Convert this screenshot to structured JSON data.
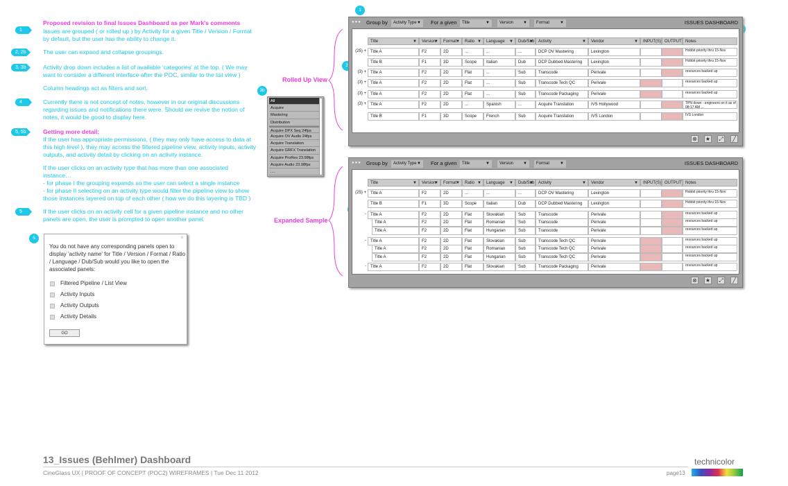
{
  "notes": {
    "heading": "Proposed revision to final Issues Dashboard as per Mark's comments",
    "items": [
      {
        "tag": "1",
        "text": "Issues are grouped ( or rolled up ) by Activity for a given Title / Version / Format by default, but the user has the ability to change it."
      },
      {
        "tag": "2, 2b",
        "text": "The user can expand and collapse groupings."
      },
      {
        "tag": "3, 3b",
        "text": "Activity drop down includes a list of available 'categories' at the top. ( We may want to consider a different interface after the POC, similar to the list view )"
      },
      {
        "tag": "",
        "text": "Column headings act as filters and sort."
      },
      {
        "tag": "4",
        "text": "Currently there is not concept of notes, however in our original discussions regarding issues and notifications there were.  Should we revive the notion of notes, it would be good to display here."
      },
      {
        "tag": "5, 5b",
        "heading": "Getting more detail:",
        "text": "If the user has appropriate permissions, ( they may only have access to data at this high level ), they may access the filtered pipeline view, activity inputs, activity outputs, and activity detail by clicking on an activity instance."
      },
      {
        "tag": "",
        "text": "If the user clicks on an activity type that has more than one associated instance…"
      },
      {
        "tag": "",
        "text": "- for phase I the grouping expands so the user can select a single instance"
      },
      {
        "tag": "",
        "text": "- for phase II selecting on an activity type would filter the pipeline view to show those instances layered on top of each other ( how we do this layering is TBD )"
      },
      {
        "tag": "5",
        "text": "If the user clicks on an activity cell for a given pipeline instance and no other panels are open, the user is prompted to open another panel."
      }
    ]
  },
  "labels": {
    "rolled_up": "Rolled Up View",
    "expanded": "Expanded Sample"
  },
  "bubbles": {
    "b1": "1",
    "b2": "2",
    "b3b": "3b",
    "b4": "4",
    "b5": "5",
    "b2b": "2b",
    "b5dialog": "5"
  },
  "activity_dropdown": {
    "items": [
      "All",
      "Acquire",
      "Mastering",
      "Distribution",
      "Acquire DPX Seq 24fps",
      "Acquire OV Audio 24fps",
      "Acquire Translation",
      "Acquire GRFX Translation",
      "Acquire ProRes 23.98fps",
      "Acquire Audio 23.98fps",
      "...."
    ],
    "selected": "All"
  },
  "dashboard": {
    "group_by_label": "Group by",
    "group_by_value": "Activity Type",
    "for_a_given_label": "For a given",
    "filters": [
      "Title",
      "Version",
      "Format"
    ],
    "title": "ISSUES DASHBOARD",
    "columns": [
      "Title",
      "Version",
      "Format",
      "Ratio",
      "Language",
      "Dub/Sub",
      "Activity",
      "Vendor",
      "INPUT(S)",
      "OUTPUT",
      "Notes"
    ],
    "footer_icons": [
      "close-circle-icon",
      "pin-icon",
      "expand-icon",
      "resize-grip-icon"
    ]
  },
  "rolled_up_rows": [
    {
      "prefix": "(25) +",
      "cells": [
        "Title A",
        "F2",
        "2D",
        "...",
        "...",
        "...",
        "DCP OV Mastering",
        "Lexington",
        "",
        "",
        "Hobbit priority thru 15-Nov"
      ],
      "red": "output"
    },
    {
      "prefix": "",
      "cells": [
        "Title B",
        "F1",
        "3D",
        "Scope",
        "Italian",
        "Dub",
        "DCP Dubbed Mastering",
        "Lexington",
        "",
        "",
        "Hobbit priority thru 15-Nov"
      ],
      "red": "output"
    },
    {
      "prefix": "(3) +",
      "cells": [
        "Title A",
        "F2",
        "2D",
        "Flat",
        "...",
        "Sub",
        "Transcode",
        "Perivale",
        "",
        "",
        "resources backed up"
      ],
      "red": "output"
    },
    {
      "prefix": "(3) +",
      "cells": [
        "Title A",
        "F2",
        "2D",
        "Flat",
        "...",
        "Sub",
        "Transcode Tech QC",
        "Perivale",
        "",
        "",
        "resources backed up"
      ],
      "red": "input"
    },
    {
      "prefix": "(3) +",
      "cells": [
        "Title A",
        "F2",
        "2D",
        "Flat",
        "...",
        "Sub",
        "Transcode Packaging",
        "Perivale",
        "",
        "",
        "resources backed up"
      ],
      "red": "input"
    },
    {
      "prefix": "(3) +",
      "cells": [
        "Title A",
        "F2",
        "2D",
        "...",
        "Spanish",
        "...",
        "Acquire Translation",
        "IVS Hollywood",
        "",
        "",
        "TPN down - engineers on it as of 08:17 AM ..."
      ],
      "red": "output"
    },
    {
      "prefix": "",
      "cells": [
        "Title B",
        "F1",
        "3D",
        "Scope",
        "French",
        "Sub",
        "Acquire Translation",
        "IVS London",
        "",
        "",
        "IVS London"
      ],
      "red": "output"
    }
  ],
  "expanded_rows": [
    {
      "prefix": "(25) +",
      "cells": [
        "Title A",
        "F2",
        "2D",
        "...",
        "...",
        "...",
        "DCP OV Mastering",
        "Lexington",
        "",
        "",
        "Hobbit priority thru 15-Nov"
      ],
      "red": "output",
      "child": false
    },
    {
      "prefix": "",
      "cells": [
        "Title B",
        "F1",
        "3D",
        "Scope",
        "Italian",
        "Dub",
        "DCP Dubbed Mastering",
        "Lexington",
        "",
        "",
        "Hobbit priority thru 15-Nov"
      ],
      "red": "output",
      "child": false
    },
    {
      "prefix": "-",
      "cells": [
        "Title A",
        "F2",
        "2D",
        "Flat",
        "Slovakian",
        "Sub",
        "Transcode",
        "Perivale",
        "",
        "",
        "resources backed up"
      ],
      "red": "output",
      "child": false
    },
    {
      "prefix": "",
      "cells": [
        "Title A",
        "F2",
        "2D",
        "Flat",
        "Romanian",
        "Sub",
        "Transcode",
        "Perivale",
        "",
        "",
        "resources backed up"
      ],
      "red": "output",
      "child": true
    },
    {
      "prefix": "",
      "cells": [
        "Title A",
        "F2",
        "2D",
        "Flat",
        "Hungarian",
        "Sub",
        "Transcode",
        "Perivale",
        "",
        "",
        "resources backed up"
      ],
      "red": "output",
      "child": true
    },
    {
      "prefix": "-",
      "cells": [
        "Title A",
        "F2",
        "2D",
        "Flat",
        "Slovakian",
        "Sub",
        "Transcode Tech QC",
        "Perivale",
        "",
        "",
        "resources backed up"
      ],
      "red": "input",
      "child": false
    },
    {
      "prefix": "",
      "cells": [
        "Title A",
        "F2",
        "2D",
        "Flat",
        "Romanian",
        "Sub",
        "Transcode Tech QC",
        "Perivale",
        "",
        "",
        "resources backed up"
      ],
      "red": "input",
      "child": true
    },
    {
      "prefix": "",
      "cells": [
        "Title A",
        "F2",
        "2D",
        "Flat",
        "Hungarian",
        "Sub",
        "Transcode Tech QC",
        "Perivale",
        "",
        "",
        "resources backed up"
      ],
      "red": "input",
      "child": true
    },
    {
      "prefix": "-",
      "cells": [
        "Title A",
        "F2",
        "2D",
        "Flat",
        "Slovakian",
        "Sub",
        "Transcode Packaging",
        "Perivale",
        "",
        "",
        "resources backed up"
      ],
      "red": "input",
      "child": false
    }
  ],
  "dialog": {
    "close": "x",
    "message": "You do not have any corresponding panels open to display 'activity name' for Title / Version / Format / Ratio / Language / Dub/Sub would you like to open the associated panels:",
    "options": [
      "Filtered Pipeline / List View",
      "Activity Inputs",
      "Activity Outputs",
      "Activity Details"
    ],
    "go": "GO"
  },
  "footer": {
    "title": "13_Issues (Behlmer)  Dashboard",
    "subtitle": "CineGlass UX | PROOF OF CONCEPT (POC2) WIREFRAMES | Tue Dec 11 2012",
    "page_label": "page",
    "page_number": "13",
    "logo_text": "technicolor"
  },
  "colors": {
    "accent_cyan": "#1ec8e8",
    "accent_pink": "#ee3ee0",
    "alert_red": "#e9b9b9"
  }
}
